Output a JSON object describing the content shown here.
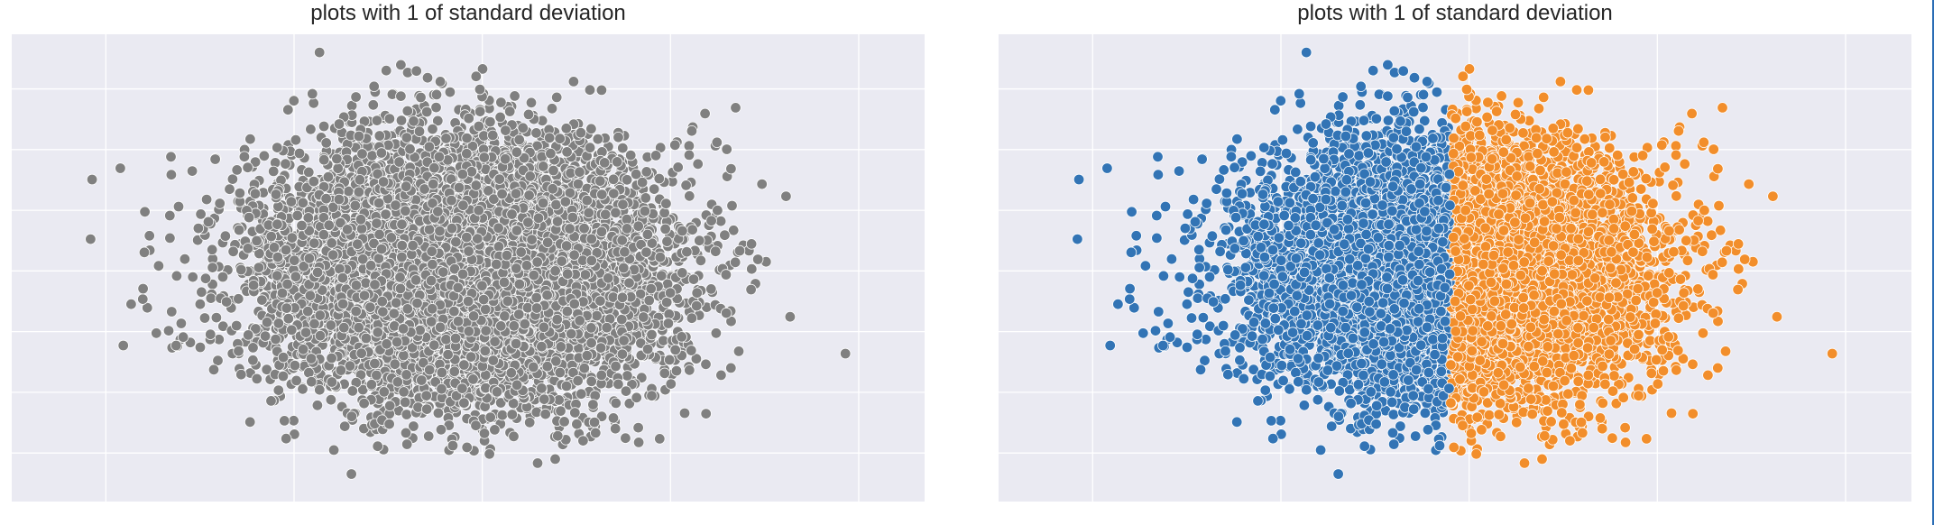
{
  "chart_data": [
    {
      "type": "scatter",
      "title": "plots with 1 of standard deviation",
      "xlabel": "",
      "ylabel": "",
      "grid": true,
      "xlim": [
        -4.8,
        4.9
      ],
      "ylim": [
        -3.8,
        3.9
      ],
      "series": [
        {
          "color": "#808080",
          "distribution": "normal",
          "mean": [
            0,
            0
          ],
          "std": [
            1,
            1
          ],
          "n_points": 10000,
          "x_range": [
            -4.5,
            4.4
          ],
          "y_range": [
            -3.4,
            3.7
          ]
        }
      ]
    },
    {
      "type": "scatter",
      "title": "plots with 1 of standard deviation",
      "xlabel": "",
      "ylabel": "",
      "grid": true,
      "xlim": [
        -4.8,
        4.9
      ],
      "ylim": [
        -3.8,
        3.9
      ],
      "split_x": 0,
      "series": [
        {
          "color": "#3274b5",
          "condition": "x < 0",
          "distribution": "normal",
          "mean": [
            0,
            0
          ],
          "std": [
            1,
            1
          ],
          "x_range": [
            -4.5,
            0
          ],
          "y_range": [
            -3.4,
            3.2
          ]
        },
        {
          "color": "#f28e2b",
          "condition": "x >= 0",
          "distribution": "normal",
          "mean": [
            0,
            0
          ],
          "std": [
            1,
            1
          ],
          "x_range": [
            0,
            4.4
          ],
          "y_range": [
            -3.0,
            3.7
          ]
        }
      ]
    }
  ]
}
